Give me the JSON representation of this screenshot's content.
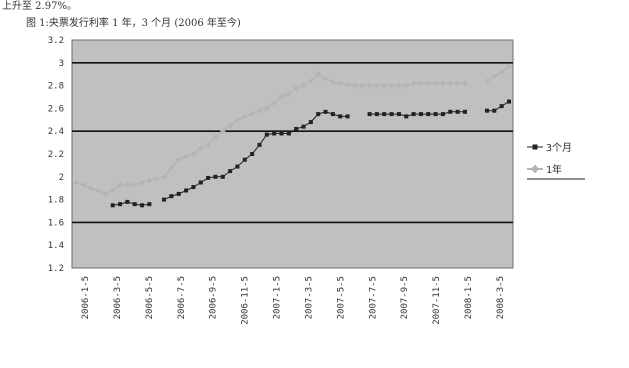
{
  "text": {
    "top_line": "上升至 2.97%。",
    "caption": "图 1:央票发行利率 1 年，3 个月 (2006 年至今)"
  },
  "chart_data": {
    "type": "line",
    "title": "",
    "xlabel": "",
    "ylabel": "",
    "grid": true,
    "legend_position": "right",
    "ylim": [
      1.2,
      3.2
    ],
    "y_ticks": [
      "3.2",
      "3",
      "2.8",
      "2.6",
      "2.4",
      "2.2",
      "2",
      "1.8",
      "1.6",
      "1.4",
      "1.2"
    ],
    "x_ticks": [
      "2006-1-5",
      "2006-3-5",
      "2006-5-5",
      "2006-7-5",
      "2006-9-5",
      "2006-11-5",
      "2007-1-5",
      "2007-3-5",
      "2007-5-5",
      "2007-7-5",
      "2007-9-5",
      "2007-11-5",
      "2008-1-5",
      "2008-3-5"
    ],
    "series": [
      {
        "name": "3个月",
        "color": "#222222",
        "marker": "square",
        "values": [
          null,
          null,
          null,
          null,
          null,
          1.75,
          1.76,
          1.78,
          1.76,
          1.75,
          1.76,
          null,
          1.8,
          1.83,
          1.85,
          1.88,
          1.91,
          1.95,
          1.99,
          2.0,
          2.0,
          2.05,
          2.09,
          2.15,
          2.2,
          2.28,
          2.37,
          2.38,
          2.38,
          2.38,
          2.42,
          2.44,
          2.48,
          2.55,
          2.57,
          2.55,
          2.53,
          2.53,
          null,
          null,
          2.55,
          2.55,
          2.55,
          2.55,
          2.55,
          2.53,
          2.55,
          2.55,
          2.55,
          2.55,
          2.55,
          2.57,
          2.57,
          2.57,
          null,
          null,
          2.58,
          2.58,
          2.62,
          2.66
        ]
      },
      {
        "name": "1年",
        "color": "#b4b4b4",
        "marker": "diamond",
        "values": [
          1.95,
          1.93,
          1.9,
          1.88,
          1.85,
          1.88,
          1.93,
          1.93,
          1.93,
          1.95,
          1.97,
          1.98,
          2.0,
          2.08,
          2.15,
          2.18,
          2.2,
          2.25,
          2.28,
          2.35,
          2.4,
          2.45,
          2.5,
          2.53,
          2.55,
          2.58,
          2.6,
          2.65,
          2.7,
          2.73,
          2.78,
          2.8,
          2.84,
          2.9,
          2.86,
          2.83,
          2.82,
          2.81,
          2.8,
          2.8,
          2.8,
          2.8,
          2.8,
          2.8,
          2.8,
          2.8,
          2.82,
          2.82,
          2.82,
          2.82,
          2.82,
          2.82,
          2.82,
          2.82,
          null,
          null,
          2.84,
          2.88,
          2.92,
          2.97
        ]
      }
    ]
  }
}
